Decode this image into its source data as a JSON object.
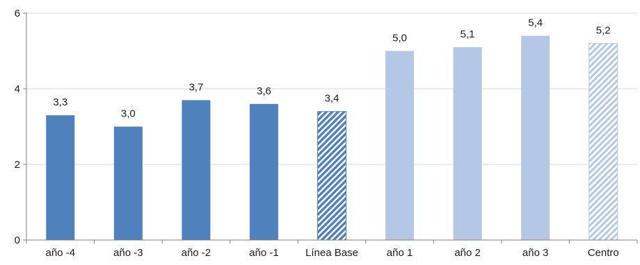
{
  "chart_data": {
    "type": "bar",
    "title": "",
    "xlabel": "",
    "ylabel": "",
    "categories": [
      "año -4",
      "año -3",
      "año -2",
      "año -1",
      "Línea Base",
      "año 1",
      "año 2",
      "año 3",
      "Centro"
    ],
    "values": [
      3.3,
      3.0,
      3.7,
      3.6,
      3.4,
      5.0,
      5.1,
      5.4,
      5.2
    ],
    "value_labels": [
      "3,3",
      "3,0",
      "3,7",
      "3,6",
      "3,4",
      "5,0",
      "5,1",
      "5,4",
      "5,2"
    ],
    "ylim": [
      0,
      6
    ],
    "yticks": [
      0,
      2,
      4,
      6
    ],
    "ytick_labels": [
      "0",
      "2",
      "4",
      "6"
    ],
    "grid": true,
    "legend": "none",
    "bar_styles": [
      "solid-dark",
      "solid-dark",
      "solid-dark",
      "solid-dark",
      "hatched-dark",
      "solid-light",
      "solid-light",
      "solid-light",
      "hatched-light"
    ],
    "colors": {
      "dark": "#4f81bd",
      "light": "#b4c7e7",
      "grid": "#d9d9d9",
      "axis": "#7f7f7f"
    }
  }
}
